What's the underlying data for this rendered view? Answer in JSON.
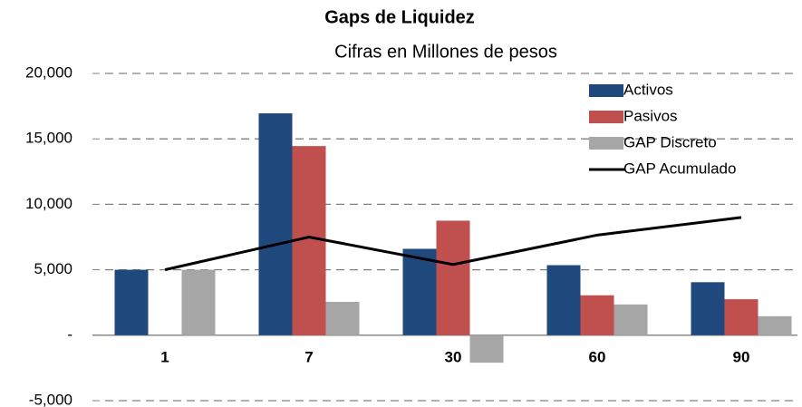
{
  "chart_data": {
    "type": "bar",
    "title": "Gaps de Liquidez",
    "subtitle": "Cifras en Millones de pesos",
    "categories": [
      "1",
      "7",
      "30",
      "60",
      "90"
    ],
    "series": [
      {
        "name": "Activos",
        "type": "bar",
        "color": "#1f497d",
        "values": [
          5000,
          16950,
          6600,
          5350,
          4050
        ]
      },
      {
        "name": "Pasivos",
        "type": "bar",
        "color": "#c0504d",
        "values": [
          0,
          14450,
          8750,
          3050,
          2750
        ]
      },
      {
        "name": "GAP Discreto",
        "type": "bar",
        "color": "#a6a6a6",
        "values": [
          5000,
          2550,
          -2100,
          2350,
          1450
        ]
      },
      {
        "name": "GAP Acumulado",
        "type": "line",
        "color": "#000000",
        "values": [
          5000,
          7500,
          5400,
          7650,
          9000
        ]
      }
    ],
    "ylim": [
      -5000,
      20000
    ],
    "yticks": [
      {
        "value": -5000,
        "label": "-5,000"
      },
      {
        "value": 0,
        "label": "-"
      },
      {
        "value": 5000,
        "label": "5,000"
      },
      {
        "value": 10000,
        "label": "10,000"
      },
      {
        "value": 15000,
        "label": "15,000"
      },
      {
        "value": 20000,
        "label": "20,000"
      }
    ],
    "grid": true,
    "legend": "top-right"
  }
}
